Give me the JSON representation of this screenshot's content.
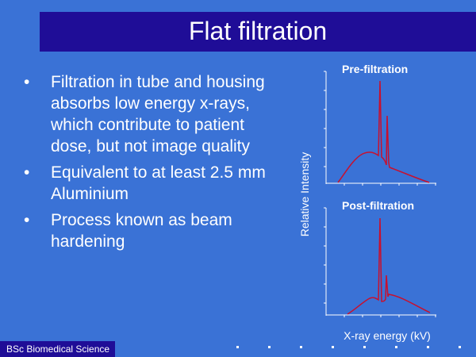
{
  "slide": {
    "title": "Flat filtration",
    "bullets": [
      "Filtration in tube and housing absorbs low energy x-rays, which contribute to patient dose, but not image quality",
      "Equivalent to at least 2.5 mm Aluminium",
      "Process known as beam hardening"
    ],
    "bullet_symbol": "•",
    "footer": "BSc Biomedical Science"
  },
  "diagram": {
    "y_axis_label": "Relative Intensity",
    "x_axis_label": "X-ray energy (kV)",
    "panels": [
      {
        "title": "Pre-filtration"
      },
      {
        "title": "Post-filtration"
      }
    ]
  },
  "colors": {
    "background": "#3a72d6",
    "title_bar": "#1f0d97",
    "curve": "#c8102e",
    "text": "#ffffff"
  }
}
